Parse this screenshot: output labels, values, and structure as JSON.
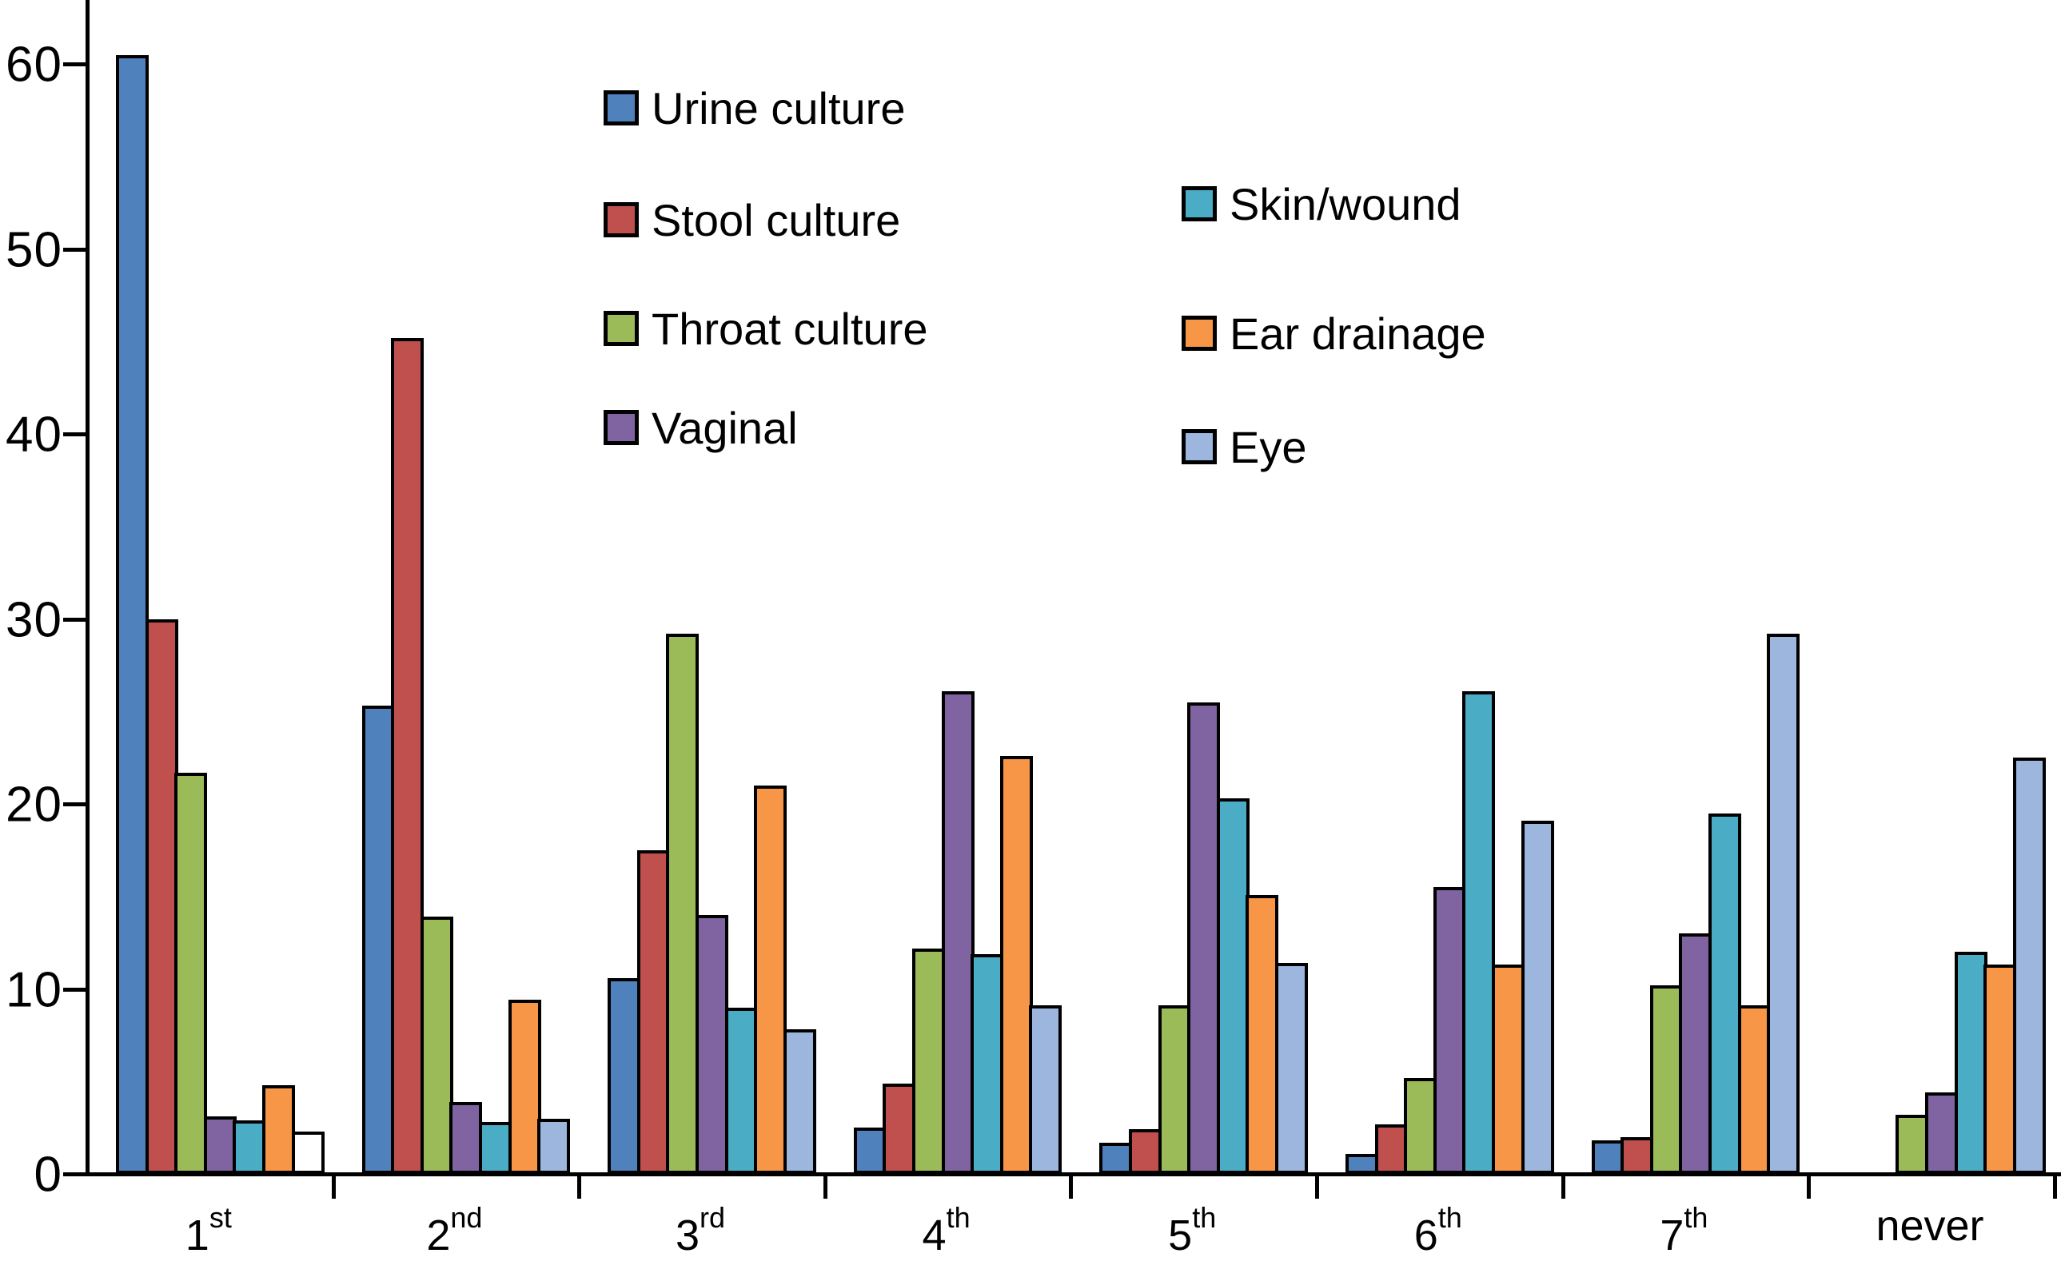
{
  "chart_data": {
    "type": "bar",
    "title": "",
    "xlabel": "",
    "ylabel": "",
    "ylim": [
      0,
      63
    ],
    "y_ticks": [
      0,
      10,
      20,
      30,
      40,
      50,
      60
    ],
    "grid": false,
    "legend_position": "inside-top",
    "categories": [
      {
        "base": "1",
        "sup": "st"
      },
      {
        "base": "2",
        "sup": "nd"
      },
      {
        "base": "3",
        "sup": "rd"
      },
      {
        "base": "4",
        "sup": "th"
      },
      {
        "base": "5",
        "sup": "th"
      },
      {
        "base": "6",
        "sup": "th"
      },
      {
        "base": "7",
        "sup": "th"
      },
      {
        "base": "never",
        "sup": ""
      }
    ],
    "series": [
      {
        "name": "Urine culture",
        "color": "#4f81bd",
        "values": [
          60.5,
          25.3,
          10.6,
          2.5,
          1.7,
          1.1,
          1.8,
          0
        ]
      },
      {
        "name": "Stool culture",
        "color": "#c0504d",
        "values": [
          30.0,
          45.2,
          17.5,
          4.9,
          2.4,
          2.7,
          2.0,
          0
        ]
      },
      {
        "name": "Throat culture",
        "color": "#9bbb59",
        "values": [
          21.7,
          13.9,
          29.2,
          12.2,
          9.1,
          5.2,
          10.2,
          3.2
        ]
      },
      {
        "name": "Vaginal",
        "color": "#8064a2",
        "values": [
          3.1,
          3.9,
          14.0,
          26.1,
          25.5,
          15.5,
          13.0,
          4.4
        ]
      },
      {
        "name": "Skin/wound",
        "color": "#4bacc6",
        "values": [
          2.9,
          2.8,
          9.0,
          11.9,
          20.3,
          26.1,
          19.5,
          12.0
        ]
      },
      {
        "name": "Ear drainage",
        "color": "#f79646",
        "values": [
          4.8,
          9.4,
          21.0,
          22.6,
          15.1,
          11.3,
          9.1,
          11.3
        ]
      },
      {
        "name": "Eye",
        "color": "#9cb6de",
        "values": [
          2.3,
          3.0,
          7.8,
          9.1,
          11.4,
          19.1,
          29.2,
          22.5
        ]
      }
    ],
    "fill_overrides": [
      {
        "category_index": 0,
        "series_index": 6,
        "color": "#ffffff"
      }
    ],
    "legend_columns": [
      {
        "x": 755,
        "rows_y": [
          104,
          244,
          380,
          504
        ],
        "series_indexes": [
          0,
          1,
          2,
          3
        ]
      },
      {
        "x": 1478,
        "rows_y": [
          224,
          386,
          528
        ],
        "series_indexes": [
          4,
          5,
          6
        ]
      }
    ]
  },
  "layout_numbers": {
    "axis_color": "#000000",
    "background": "#ffffff"
  }
}
